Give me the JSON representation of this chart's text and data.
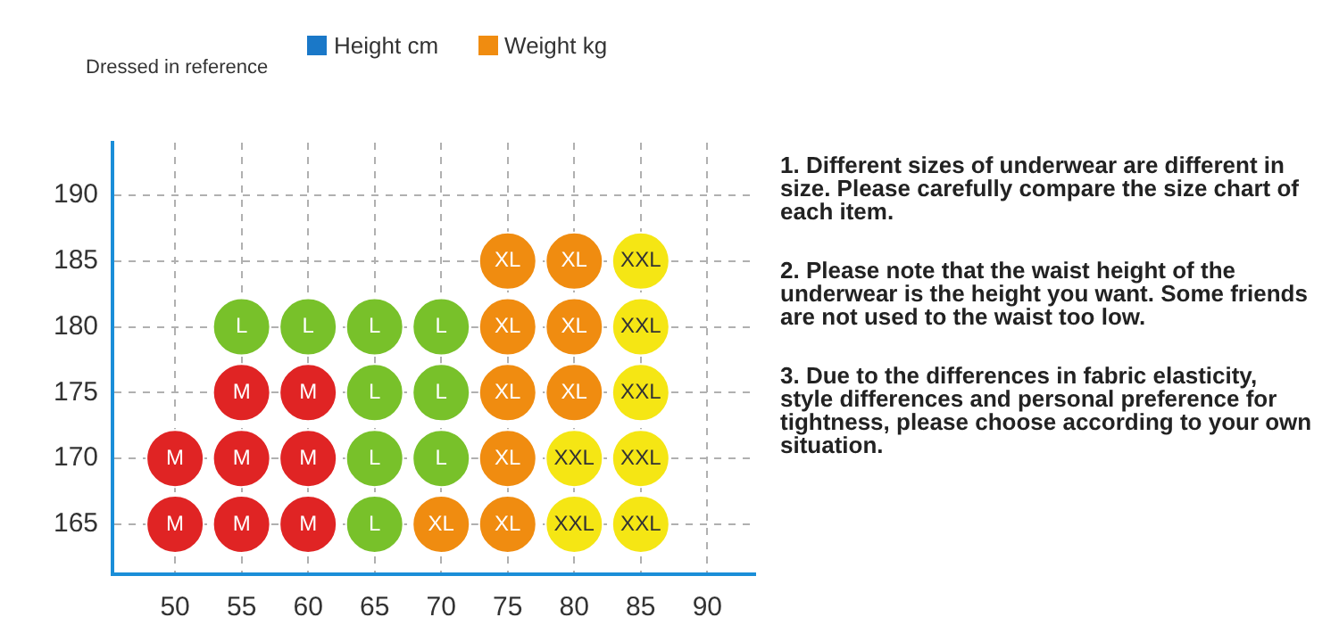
{
  "chart_data": {
    "type": "scatter",
    "title": "Dressed in reference",
    "xlabel": "Weight kg",
    "ylabel": "Height cm",
    "xlim": [
      45.3,
      93.6
    ],
    "xticks": [
      50,
      55,
      60,
      65,
      70,
      75,
      80,
      85,
      90
    ],
    "ylim": [
      161.2,
      194
    ],
    "yticks": [
      165,
      170,
      175,
      180,
      185,
      190
    ],
    "grid": true,
    "legend": false,
    "marker": "circle",
    "series": [
      {
        "name": "M",
        "color": "#e02424",
        "x": [
          55,
          60,
          50,
          55,
          60,
          50,
          55,
          60
        ],
        "values": [
          175,
          175,
          170,
          170,
          170,
          165,
          165,
          165
        ]
      },
      {
        "name": "L",
        "color": "#78c12a",
        "x": [
          55,
          60,
          65,
          70,
          65,
          70,
          65,
          70,
          65
        ],
        "values": [
          180,
          180,
          180,
          180,
          175,
          175,
          170,
          170,
          165
        ]
      },
      {
        "name": "XL",
        "color": "#f08c10",
        "x": [
          75,
          80,
          75,
          80,
          75,
          80,
          75,
          70,
          75
        ],
        "values": [
          185,
          185,
          180,
          180,
          175,
          175,
          170,
          165,
          165
        ]
      },
      {
        "name": "XXL",
        "color": "#f5e614",
        "x": [
          85,
          85,
          85,
          80,
          85,
          80,
          85
        ],
        "values": [
          185,
          180,
          175,
          170,
          170,
          165,
          165
        ]
      }
    ],
    "annotations": [
      "1. Different sizes of underwear are different in size. Please carefully compare the size chart of each item.",
      "2. Please note that the waist height of the underwear is the height you want. Some friends are not used to the waist too low.",
      "3. Due to the differences in fabric elasticity, style differences and personal preference for tightness, please choose according to your own situation."
    ]
  }
}
